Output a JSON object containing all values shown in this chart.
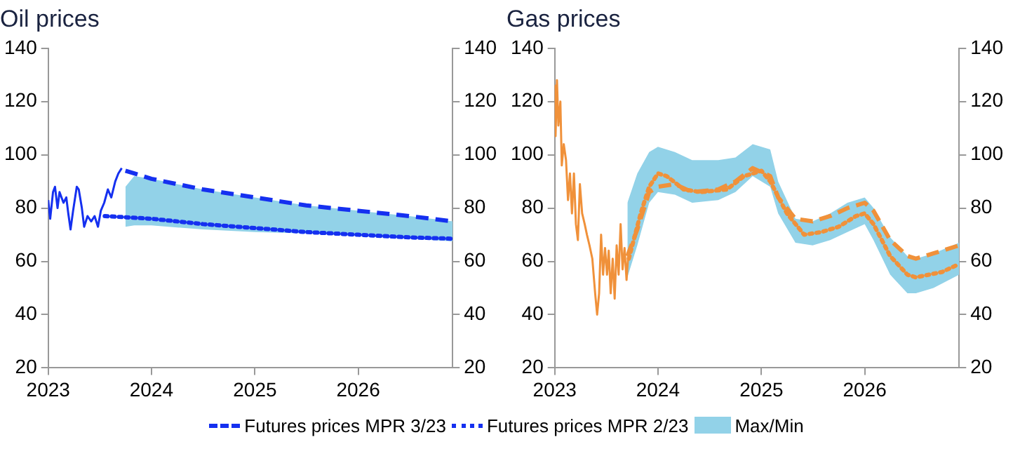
{
  "chart_data": [
    {
      "type": "line",
      "title": "Oil prices",
      "xlim": [
        "2023-01-01",
        "2026-12-01"
      ],
      "xticks": [
        "2023",
        "2024",
        "2025",
        "2026"
      ],
      "ylim": [
        20,
        140
      ],
      "yticks": [
        20,
        40,
        60,
        80,
        100,
        120,
        140
      ],
      "y2lim": [
        20,
        140
      ],
      "y2ticks": [
        20,
        40,
        60,
        80,
        100,
        120,
        140
      ],
      "grid": false,
      "legend": "bottom",
      "marker": "none",
      "annotations": [
        "Max/Min"
      ],
      "series": [
        {
          "color": "#1530f0",
          "line_style": "solid",
          "x": [
            "2023-01-01",
            "2023-01-08",
            "2023-01-18",
            "2023-01-25",
            "2023-02-03",
            "2023-02-10",
            "2023-02-24",
            "2023-03-06",
            "2023-03-13",
            "2023-03-21",
            "2023-03-30",
            "2023-04-12",
            "2023-04-19",
            "2023-04-30",
            "2023-05-08",
            "2023-05-20",
            "2023-06-02",
            "2023-06-14",
            "2023-06-26",
            "2023-07-06",
            "2023-07-18",
            "2023-07-31",
            "2023-08-12",
            "2023-08-26",
            "2023-09-06",
            "2023-09-18"
          ],
          "values": [
            83,
            76,
            86,
            88,
            80,
            86,
            82,
            84,
            78,
            72,
            79,
            88,
            87,
            80,
            73,
            77,
            75,
            77,
            73,
            79,
            82,
            87,
            84,
            90,
            93,
            95
          ]
        },
        {
          "name": "Futures prices MPR 3/23",
          "color": "#1530f0",
          "line_style": "dashed",
          "x": [
            "2023-10-01",
            "2023-11-01",
            "2024-01-01",
            "2024-07-01",
            "2025-01-01",
            "2025-07-01",
            "2026-01-01",
            "2026-07-01",
            "2026-12-01"
          ],
          "values": [
            94,
            93,
            91,
            87,
            84,
            81,
            79,
            77,
            75
          ],
          "lower": [
            73,
            73.5,
            73.5,
            72,
            71,
            70.5,
            69.5,
            68.5,
            67.5
          ],
          "upper": [
            88,
            92,
            91,
            87,
            84,
            81,
            79,
            77,
            75
          ]
        },
        {
          "name": "Futures prices MPR 2/23",
          "color": "#1530f0",
          "line_style": "dotted",
          "x": [
            "2023-07-20",
            "2024-01-01",
            "2024-07-01",
            "2025-01-01",
            "2025-07-01",
            "2026-01-01",
            "2026-07-01",
            "2026-12-01"
          ],
          "values": [
            77,
            76,
            74,
            72.5,
            71,
            70,
            69,
            68.5
          ]
        }
      ]
    },
    {
      "type": "line",
      "title": "Gas prices",
      "xlim": [
        "2023-01-01",
        "2026-12-01"
      ],
      "xticks": [
        "2023",
        "2024",
        "2025",
        "2026"
      ],
      "ylim": [
        20,
        140
      ],
      "yticks": [
        20,
        40,
        60,
        80,
        100,
        120,
        140
      ],
      "y2lim": [
        20,
        140
      ],
      "y2ticks": [
        20,
        40,
        60,
        80,
        100,
        120,
        140
      ],
      "grid": false,
      "legend": false,
      "marker": "none",
      "series": [
        {
          "color": "#f0913a",
          "line_style": "solid",
          "x": [
            "2023-01-01",
            "2023-01-04",
            "2023-01-09",
            "2023-01-14",
            "2023-01-21",
            "2023-01-26",
            "2023-02-02",
            "2023-02-10",
            "2023-02-17",
            "2023-02-24",
            "2023-03-03",
            "2023-03-10",
            "2023-03-17",
            "2023-03-24",
            "2023-03-31",
            "2023-04-08",
            "2023-04-17",
            "2023-04-25",
            "2023-05-04",
            "2023-05-14",
            "2023-05-24",
            "2023-05-31",
            "2023-06-07",
            "2023-06-14",
            "2023-06-21",
            "2023-06-28",
            "2023-07-05",
            "2023-07-11",
            "2023-07-18",
            "2023-07-25",
            "2023-08-01",
            "2023-08-08",
            "2023-08-15",
            "2023-08-22",
            "2023-08-29",
            "2023-09-05",
            "2023-09-12",
            "2023-09-19"
          ],
          "values": [
            126,
            107,
            128,
            111,
            120,
            96,
            104,
            98,
            83,
            93,
            78,
            93,
            74,
            68,
            89,
            78,
            74,
            70,
            66,
            61,
            48,
            40,
            48,
            70,
            55,
            65,
            55,
            64,
            48,
            61,
            46,
            66,
            55,
            74,
            57,
            65,
            53,
            64
          ]
        },
        {
          "color": "#f0913a",
          "line_style": "dashed",
          "x": [
            "2023-09-15",
            "2023-10-20",
            "2023-12-01",
            "2024-01-01",
            "2024-03-01",
            "2024-05-01",
            "2024-08-01",
            "2024-10-01",
            "2024-12-01",
            "2025-02-01",
            "2025-03-01",
            "2025-05-01",
            "2025-07-01",
            "2025-09-01",
            "2025-11-01",
            "2026-01-01",
            "2026-02-01",
            "2026-04-01",
            "2026-06-01",
            "2026-07-01",
            "2026-09-01",
            "2026-12-01"
          ],
          "values": [
            62,
            72,
            86,
            88,
            89,
            86,
            87,
            90,
            95,
            92,
            84,
            76,
            75,
            77,
            80,
            82,
            79,
            68,
            62,
            61,
            63,
            66
          ],
          "lower": [
            54,
            66,
            82,
            86,
            85,
            82,
            83,
            86,
            92,
            88,
            78,
            67,
            66,
            68,
            71,
            74,
            68,
            55,
            48,
            48,
            50,
            55
          ],
          "upper": [
            82,
            93,
            101,
            103,
            101,
            98,
            98,
            99,
            104,
            102,
            90,
            76,
            75,
            78,
            82,
            84,
            80,
            69,
            62,
            61,
            63,
            67
          ]
        },
        {
          "color": "#f0913a",
          "line_style": "dotted",
          "x": [
            "2023-09-20",
            "2023-11-01",
            "2023-12-01",
            "2024-01-01",
            "2024-02-01",
            "2024-04-01",
            "2024-06-01",
            "2024-09-01",
            "2024-11-01",
            "2025-01-01",
            "2025-02-01",
            "2025-04-01",
            "2025-06-01",
            "2025-08-01",
            "2025-10-01",
            "2025-12-01",
            "2026-01-01",
            "2026-02-01",
            "2026-04-01",
            "2026-06-01",
            "2026-07-01",
            "2026-10-01",
            "2026-12-01"
          ],
          "values": [
            61,
            78,
            88,
            93,
            92,
            87,
            86,
            87,
            92,
            94,
            90,
            78,
            70,
            71,
            73,
            77,
            78,
            74,
            62,
            55,
            54,
            56,
            59
          ]
        }
      ]
    }
  ]
}
